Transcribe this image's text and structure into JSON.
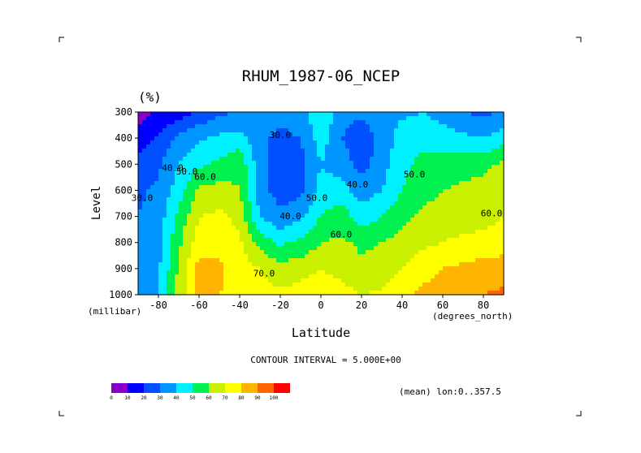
{
  "chart_data": {
    "type": "heatmap",
    "title": "RHUM_1987-06_NCEP",
    "units": "(%)",
    "xlabel": "Latitude",
    "xunit": "(degrees_north)",
    "ylabel": "Level",
    "yunit": "(millibar)",
    "xlim": [
      -90,
      90
    ],
    "ylim": [
      1000,
      300
    ],
    "x_ticks": [
      -80,
      -60,
      -40,
      -20,
      0,
      20,
      40,
      60,
      80
    ],
    "y_ticks": [
      300,
      400,
      500,
      600,
      700,
      800,
      900,
      1000
    ],
    "grid": false,
    "contour_interval_text": "CONTOUR INTERVAL = 5.000E+00",
    "mean_text": "(mean) lon:0..357.5",
    "contour_labels": [
      {
        "text": "30.0",
        "x": -20,
        "y": 400
      },
      {
        "text": "40.0",
        "x": -73,
        "y": 525
      },
      {
        "text": "50.0",
        "x": -66,
        "y": 540
      },
      {
        "text": "60.0",
        "x": -57,
        "y": 560
      },
      {
        "text": "30.0",
        "x": -88,
        "y": 640
      },
      {
        "text": "40.0",
        "x": -15,
        "y": 710
      },
      {
        "text": "50.0",
        "x": -2,
        "y": 640
      },
      {
        "text": "60.0",
        "x": 10,
        "y": 780
      },
      {
        "text": "70.0",
        "x": -28,
        "y": 930
      },
      {
        "text": "40.0",
        "x": 18,
        "y": 590
      },
      {
        "text": "50.0",
        "x": 46,
        "y": 550
      },
      {
        "text": "60.0",
        "x": 84,
        "y": 700
      }
    ],
    "x": [
      -90,
      -80,
      -70,
      -60,
      -50,
      -40,
      -30,
      -20,
      -10,
      0,
      10,
      20,
      30,
      40,
      50,
      60,
      70,
      80,
      90
    ],
    "y": [
      300,
      400,
      500,
      600,
      700,
      800,
      900,
      1000
    ],
    "z": [
      [
        5,
        12,
        15,
        22,
        28,
        31,
        35,
        32,
        35,
        50,
        35,
        32,
        38,
        38,
        40,
        35,
        30,
        28,
        30
      ],
      [
        15,
        22,
        32,
        38,
        42,
        44,
        32,
        28,
        30,
        45,
        30,
        23,
        33,
        45,
        48,
        45,
        42,
        40,
        45
      ],
      [
        22,
        28,
        40,
        48,
        52,
        58,
        33,
        25,
        27,
        40,
        35,
        26,
        36,
        48,
        52,
        55,
        56,
        58,
        62
      ],
      [
        28,
        32,
        45,
        62,
        64,
        60,
        34,
        25,
        27,
        44,
        45,
        34,
        40,
        50,
        56,
        60,
        62,
        63,
        64
      ],
      [
        30,
        34,
        53,
        70,
        72,
        67,
        40,
        32,
        38,
        50,
        55,
        45,
        50,
        57,
        62,
        65,
        65,
        66,
        70
      ],
      [
        30,
        36,
        58,
        75,
        77,
        72,
        56,
        48,
        52,
        60,
        62,
        58,
        60,
        64,
        68,
        70,
        72,
        74,
        75
      ],
      [
        31,
        38,
        62,
        84,
        82,
        74,
        70,
        64,
        66,
        70,
        66,
        62,
        64,
        70,
        76,
        80,
        82,
        84,
        85
      ],
      [
        32,
        40,
        64,
        84,
        80,
        77,
        74,
        72,
        74,
        78,
        74,
        70,
        72,
        78,
        82,
        85,
        88,
        90,
        92
      ]
    ],
    "colorbar": {
      "labels": [
        "0",
        "10",
        "20",
        "30",
        "40",
        "50",
        "60",
        "70",
        "80",
        "90",
        "100"
      ],
      "colors": [
        "#8a00c8",
        "#0000ff",
        "#0050ff",
        "#0096ff",
        "#00f0ff",
        "#00f050",
        "#c8f000",
        "#ffff00",
        "#ffb400",
        "#ff6400",
        "#ff0000"
      ]
    }
  }
}
